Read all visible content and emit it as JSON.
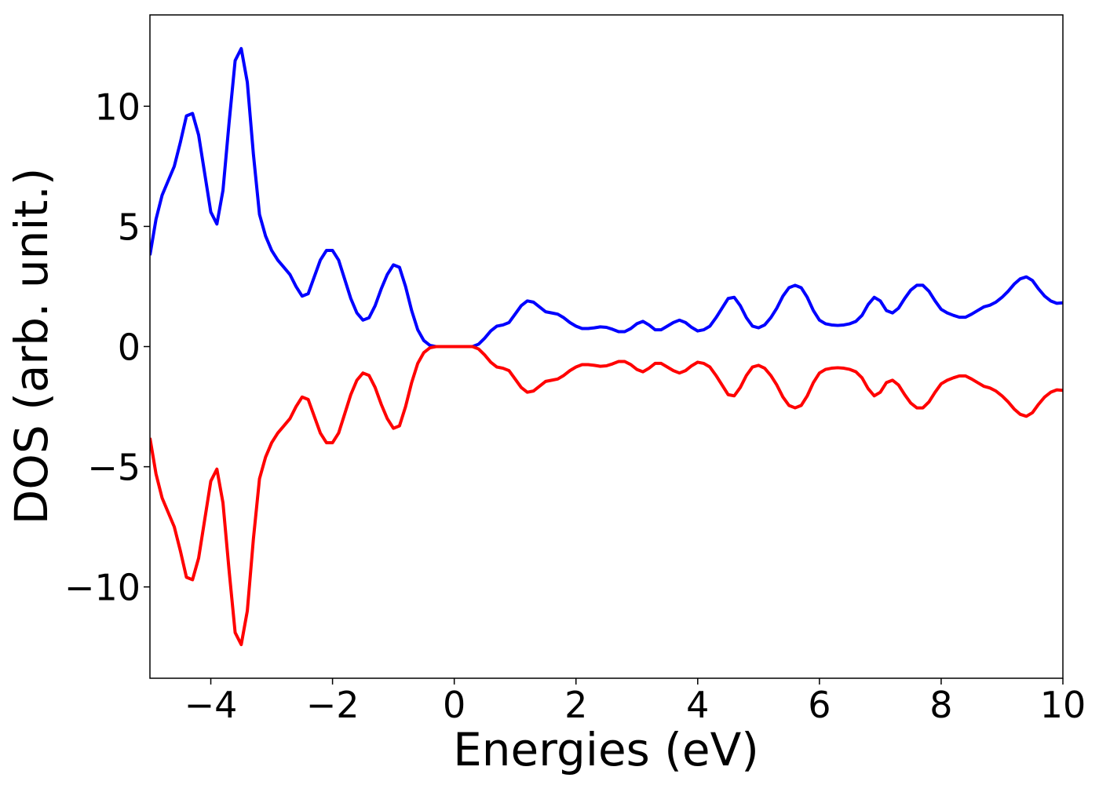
{
  "chart_data": {
    "type": "line",
    "xlabel": "Energies (eV)",
    "ylabel": "DOS (arb. unit.)",
    "xlim": [
      -5,
      10
    ],
    "ylim": [
      -13.8,
      13.8
    ],
    "xticks": [
      {
        "value": -4,
        "label": "−4"
      },
      {
        "value": -2,
        "label": "−2"
      },
      0,
      2,
      4,
      6,
      8,
      10
    ],
    "yticks": [
      {
        "value": -10,
        "label": "−10"
      },
      {
        "value": -5,
        "label": "−5"
      },
      0,
      5,
      10
    ],
    "x": [
      -5.0,
      -4.9,
      -4.8,
      -4.7,
      -4.6,
      -4.5,
      -4.4,
      -4.3,
      -4.2,
      -4.1,
      -4.0,
      -3.9,
      -3.8,
      -3.7,
      -3.6,
      -3.5,
      -3.4,
      -3.3,
      -3.2,
      -3.1,
      -3.0,
      -2.9,
      -2.8,
      -2.7,
      -2.6,
      -2.5,
      -2.4,
      -2.3,
      -2.2,
      -2.1,
      -2.0,
      -1.9,
      -1.8,
      -1.7,
      -1.6,
      -1.5,
      -1.4,
      -1.3,
      -1.2,
      -1.1,
      -1.0,
      -0.9,
      -0.8,
      -0.7,
      -0.6,
      -0.5,
      -0.4,
      -0.3,
      -0.2,
      -0.1,
      0.0,
      0.1,
      0.2,
      0.3,
      0.4,
      0.5,
      0.6,
      0.7,
      0.8,
      0.9,
      1.0,
      1.1,
      1.2,
      1.3,
      1.4,
      1.5,
      1.6,
      1.7,
      1.8,
      1.9,
      2.0,
      2.1,
      2.2,
      2.3,
      2.4,
      2.5,
      2.6,
      2.7,
      2.8,
      2.9,
      3.0,
      3.1,
      3.2,
      3.3,
      3.4,
      3.5,
      3.6,
      3.7,
      3.8,
      3.9,
      4.0,
      4.1,
      4.2,
      4.3,
      4.4,
      4.5,
      4.6,
      4.7,
      4.8,
      4.9,
      5.0,
      5.1,
      5.2,
      5.3,
      5.4,
      5.5,
      5.6,
      5.7,
      5.8,
      5.9,
      6.0,
      6.1,
      6.2,
      6.3,
      6.4,
      6.5,
      6.6,
      6.7,
      6.8,
      6.9,
      7.0,
      7.1,
      7.2,
      7.3,
      7.4,
      7.5,
      7.6,
      7.7,
      7.8,
      7.9,
      8.0,
      8.1,
      8.2,
      8.3,
      8.4,
      8.5,
      8.6,
      8.7,
      8.8,
      8.9,
      9.0,
      9.1,
      9.2,
      9.3,
      9.4,
      9.5,
      9.6,
      9.7,
      9.8,
      9.9,
      10.0
    ],
    "series": [
      {
        "color": "#0000ff",
        "values": [
          3.8,
          5.3,
          6.3,
          6.9,
          7.5,
          8.5,
          9.6,
          9.7,
          8.8,
          7.2,
          5.6,
          5.1,
          6.5,
          9.3,
          11.9,
          12.4,
          11.0,
          8.0,
          5.5,
          4.6,
          4.0,
          3.6,
          3.3,
          3.0,
          2.5,
          2.1,
          2.2,
          2.9,
          3.6,
          4.0,
          4.0,
          3.6,
          2.8,
          2.0,
          1.4,
          1.1,
          1.2,
          1.7,
          2.4,
          3.0,
          3.4,
          3.3,
          2.5,
          1.5,
          0.7,
          0.25,
          0.05,
          0,
          0,
          0,
          0,
          0,
          0,
          0,
          0.1,
          0.35,
          0.65,
          0.85,
          0.9,
          1.0,
          1.35,
          1.7,
          1.9,
          1.85,
          1.65,
          1.45,
          1.4,
          1.35,
          1.2,
          1.0,
          0.85,
          0.75,
          0.75,
          0.78,
          0.82,
          0.8,
          0.72,
          0.62,
          0.62,
          0.75,
          0.95,
          1.05,
          0.9,
          0.7,
          0.7,
          0.85,
          1.0,
          1.1,
          1.0,
          0.8,
          0.65,
          0.7,
          0.85,
          1.2,
          1.6,
          2.0,
          2.05,
          1.7,
          1.2,
          0.85,
          0.78,
          0.9,
          1.2,
          1.6,
          2.1,
          2.45,
          2.55,
          2.45,
          2.05,
          1.5,
          1.1,
          0.95,
          0.9,
          0.88,
          0.9,
          0.95,
          1.05,
          1.3,
          1.75,
          2.05,
          1.9,
          1.5,
          1.4,
          1.6,
          2.0,
          2.35,
          2.55,
          2.55,
          2.3,
          1.9,
          1.55,
          1.4,
          1.3,
          1.22,
          1.22,
          1.35,
          1.5,
          1.65,
          1.72,
          1.85,
          2.05,
          2.3,
          2.6,
          2.82,
          2.9,
          2.75,
          2.4,
          2.1,
          1.9,
          1.8,
          1.82
        ]
      },
      {
        "color": "#ff0000",
        "values": [
          -3.8,
          -5.3,
          -6.3,
          -6.9,
          -7.5,
          -8.5,
          -9.6,
          -9.7,
          -8.8,
          -7.2,
          -5.6,
          -5.1,
          -6.5,
          -9.3,
          -11.9,
          -12.4,
          -11.0,
          -8.0,
          -5.5,
          -4.6,
          -4.0,
          -3.6,
          -3.3,
          -3.0,
          -2.5,
          -2.1,
          -2.2,
          -2.9,
          -3.6,
          -4.0,
          -4.0,
          -3.6,
          -2.8,
          -2.0,
          -1.4,
          -1.1,
          -1.2,
          -1.7,
          -2.4,
          -3.0,
          -3.4,
          -3.3,
          -2.5,
          -1.5,
          -0.7,
          -0.25,
          -0.05,
          0,
          0,
          0,
          0,
          0,
          0,
          0,
          -0.1,
          -0.35,
          -0.65,
          -0.85,
          -0.9,
          -1.0,
          -1.35,
          -1.7,
          -1.9,
          -1.85,
          -1.65,
          -1.45,
          -1.4,
          -1.35,
          -1.2,
          -1.0,
          -0.85,
          -0.75,
          -0.75,
          -0.78,
          -0.82,
          -0.8,
          -0.72,
          -0.62,
          -0.62,
          -0.75,
          -0.95,
          -1.05,
          -0.9,
          -0.7,
          -0.7,
          -0.85,
          -1.0,
          -1.1,
          -1.0,
          -0.8,
          -0.65,
          -0.7,
          -0.85,
          -1.2,
          -1.6,
          -2.0,
          -2.05,
          -1.7,
          -1.2,
          -0.85,
          -0.78,
          -0.9,
          -1.2,
          -1.6,
          -2.1,
          -2.45,
          -2.55,
          -2.45,
          -2.05,
          -1.5,
          -1.1,
          -0.95,
          -0.9,
          -0.88,
          -0.9,
          -0.95,
          -1.05,
          -1.3,
          -1.75,
          -2.05,
          -1.9,
          -1.5,
          -1.4,
          -1.6,
          -2.0,
          -2.35,
          -2.55,
          -2.55,
          -2.3,
          -1.9,
          -1.55,
          -1.4,
          -1.3,
          -1.22,
          -1.22,
          -1.35,
          -1.5,
          -1.65,
          -1.72,
          -1.85,
          -2.05,
          -2.3,
          -2.6,
          -2.82,
          -2.9,
          -2.75,
          -2.4,
          -2.1,
          -1.9,
          -1.8,
          -1.82
        ]
      }
    ]
  }
}
